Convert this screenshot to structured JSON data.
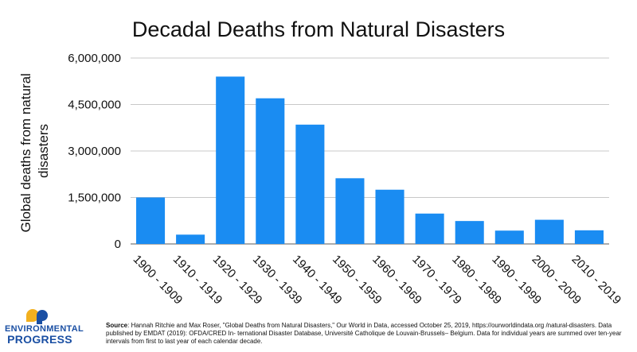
{
  "chart_data": {
    "type": "bar",
    "title": "Decadal Deaths from Natural Disasters",
    "ylabel": "Global deaths from natural disasters",
    "xlabel": "",
    "categories": [
      "1900 - 1909",
      "1910 - 1919",
      "1920 - 1929",
      "1930 - 1939",
      "1940 - 1949",
      "1950 - 1959",
      "1960 - 1969",
      "1970 - 1979",
      "1980 - 1989",
      "1990 - 1999",
      "2000 - 2009",
      "2010 - 2019"
    ],
    "values": [
      1500000,
      300000,
      5400000,
      4700000,
      3850000,
      2120000,
      1750000,
      980000,
      740000,
      430000,
      780000,
      440000
    ],
    "ylim": [
      0,
      6000000
    ],
    "yticks": [
      0,
      1500000,
      3000000,
      4500000,
      6000000
    ],
    "ytick_labels": [
      "0",
      "1,500,000",
      "3,000,000",
      "4,500,000",
      "6,000,000"
    ],
    "grid": true,
    "bar_color": "#1a8cf2"
  },
  "logo": {
    "line1": "ENVIRONMENTAL",
    "line2": "PROGRESS",
    "color": "#1a4fa3",
    "accent": "#f2b01e"
  },
  "source": {
    "label": "Source",
    "text": ": Hannah Ritchie and Max Roser, \"Global Deaths from Natural Disasters,\" Our World in Data, accessed October 25, 2019, https://ourworldindata.org /natural-disasters. Data published by EMDAT (2019): OFDA/CRED In- ternational Disaster Database, Université Catholique de Louvain-Brussels– Belgium. Data for individual years are summed over ten-year intervals from first to last year of each calendar decade."
  }
}
